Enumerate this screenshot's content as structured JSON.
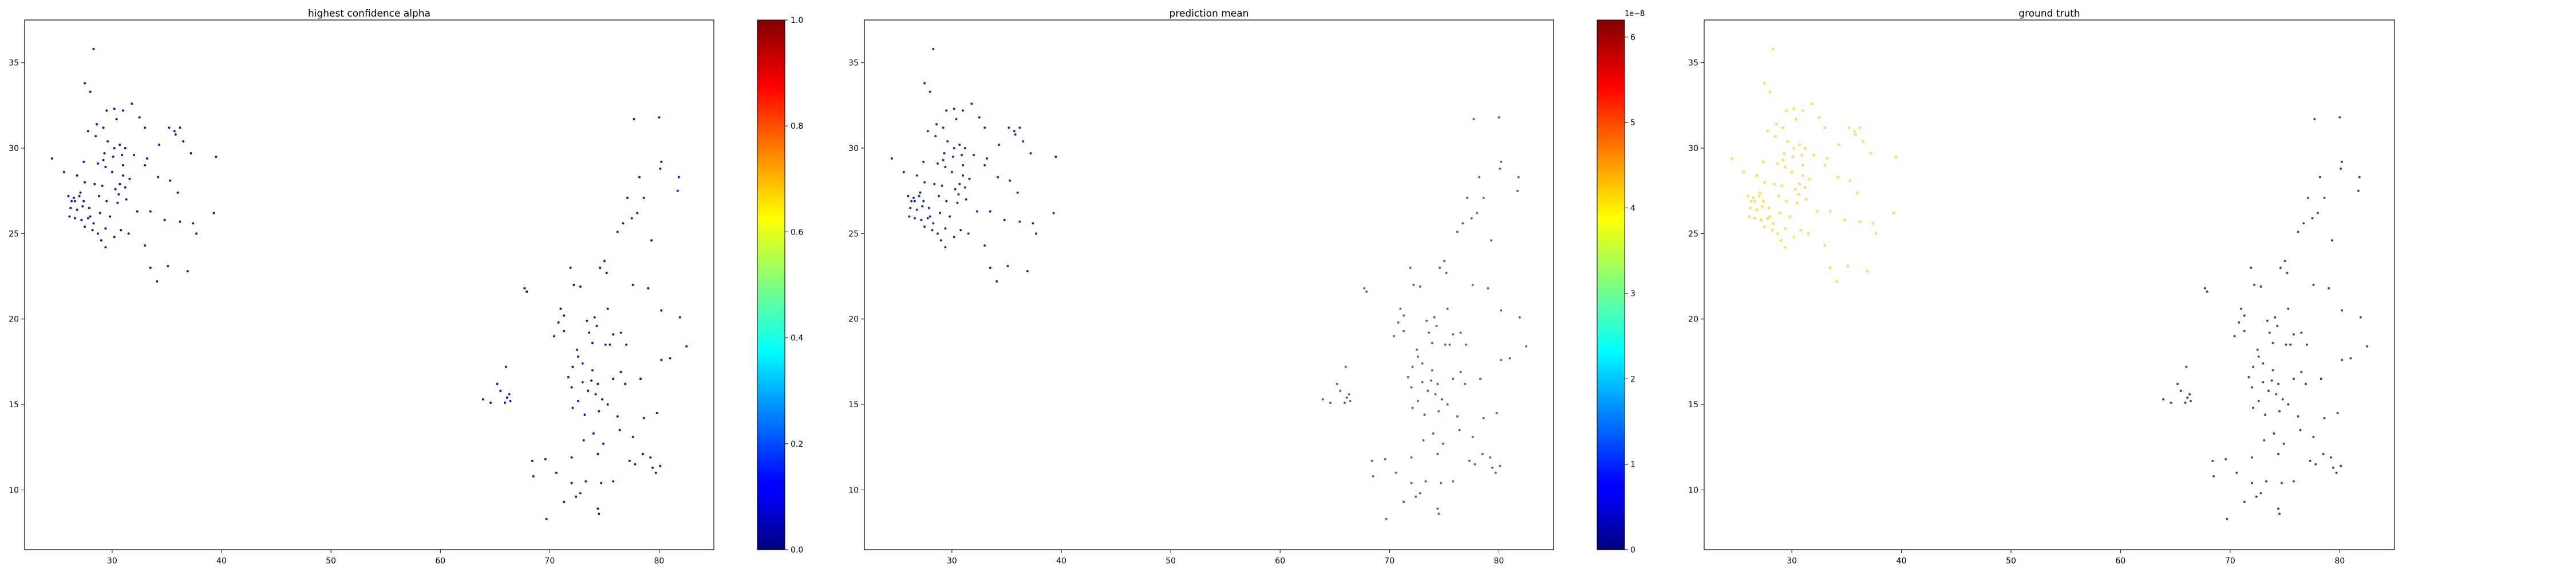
{
  "chart_data": [
    {
      "type": "scatter",
      "title": "highest confidence alpha",
      "xlim": [
        22,
        85
      ],
      "ylim": [
        6.5,
        37.5
      ],
      "xticks": [
        30,
        40,
        50,
        60,
        70,
        80
      ],
      "yticks": [
        10,
        15,
        20,
        25,
        30,
        35
      ],
      "point_color": "#1010d0",
      "colorbar": {
        "colormap": "jet",
        "range": [
          0.0,
          1.0
        ],
        "ticks": [
          0.0,
          0.2,
          0.4,
          0.6,
          0.8,
          1.0
        ],
        "tick_labels": [
          "0.0",
          "0.2",
          "0.4",
          "0.6",
          "0.8",
          "1.0"
        ],
        "offset_label": ""
      }
    },
    {
      "type": "scatter",
      "title": "prediction mean",
      "xlim": [
        22,
        85
      ],
      "ylim": [
        6.5,
        37.5
      ],
      "xticks": [
        30,
        40,
        50,
        60,
        70,
        80
      ],
      "yticks": [
        10,
        15,
        20,
        25,
        30,
        35
      ],
      "point_color_west": "#2020c0",
      "point_color_east": "#6060a0",
      "colorbar": {
        "colormap": "jet",
        "range": [
          0,
          6.2
        ],
        "ticks": [
          0,
          1,
          2,
          3,
          4,
          5,
          6
        ],
        "tick_labels": [
          "0",
          "1",
          "2",
          "3",
          "4",
          "5",
          "6"
        ],
        "offset_label": "1e−8"
      }
    },
    {
      "type": "scatter",
      "title": "ground truth",
      "xlim": [
        22,
        85
      ],
      "ylim": [
        6.5,
        37.5
      ],
      "xticks": [
        30,
        40,
        50,
        60,
        70,
        80
      ],
      "yticks": [
        10,
        15,
        20,
        25,
        30,
        35
      ],
      "point_color_west": "#ffe066",
      "point_color_east": "#444466"
    }
  ],
  "points": [
    [
      28.3,
      35.8
    ],
    [
      27.5,
      33.8
    ],
    [
      28,
      33.3
    ],
    [
      29.5,
      32.2
    ],
    [
      30.2,
      32.3
    ],
    [
      31,
      32.2
    ],
    [
      31.8,
      32.6
    ],
    [
      32.5,
      31.8
    ],
    [
      33,
      31.2
    ],
    [
      30.4,
      31.7
    ],
    [
      29.2,
      31.2
    ],
    [
      28.6,
      31.4
    ],
    [
      27.8,
      31.0
    ],
    [
      28.5,
      30.7
    ],
    [
      29.6,
      30.4
    ],
    [
      30.2,
      30.0
    ],
    [
      30.7,
      30.2
    ],
    [
      31.2,
      30.0
    ],
    [
      29.3,
      29.7
    ],
    [
      30.1,
      29.5
    ],
    [
      28.7,
      29.1
    ],
    [
      29.4,
      28.9
    ],
    [
      30.0,
      28.6
    ],
    [
      31.0,
      29.0
    ],
    [
      32.0,
      29.6
    ],
    [
      33.2,
      29.4
    ],
    [
      34.3,
      30.2
    ],
    [
      35.2,
      31.2
    ],
    [
      35.7,
      31.0
    ],
    [
      36.2,
      31.2
    ],
    [
      35.8,
      30.8
    ],
    [
      36.5,
      30.4
    ],
    [
      37.2,
      29.7
    ],
    [
      39.5,
      29.5
    ],
    [
      24.5,
      29.4
    ],
    [
      25.6,
      28.6
    ],
    [
      26.8,
      28.4
    ],
    [
      27.5,
      28.0
    ],
    [
      28.4,
      27.9
    ],
    [
      29.1,
      27.8
    ],
    [
      30.3,
      27.6
    ],
    [
      31.2,
      27.7
    ],
    [
      31.6,
      28.2
    ],
    [
      31.0,
      28.4
    ],
    [
      30.7,
      27.9
    ],
    [
      33.0,
      29.0
    ],
    [
      34.2,
      28.3
    ],
    [
      35.3,
      28.1
    ],
    [
      36.0,
      27.4
    ],
    [
      36.2,
      25.7
    ],
    [
      37.4,
      25.6
    ],
    [
      37.7,
      25.0
    ],
    [
      39.3,
      26.2
    ],
    [
      34.8,
      25.8
    ],
    [
      33.5,
      26.3
    ],
    [
      32.3,
      26.3
    ],
    [
      30.5,
      26.8
    ],
    [
      29.5,
      26.9
    ],
    [
      28.8,
      27.2
    ],
    [
      26.0,
      27.2
    ],
    [
      26.3,
      26.9
    ],
    [
      26.5,
      27.1
    ],
    [
      27.0,
      27.2
    ],
    [
      27.4,
      26.9
    ],
    [
      26.2,
      26.5
    ],
    [
      26.8,
      26.4
    ],
    [
      27.3,
      26.6
    ],
    [
      26.1,
      26.0
    ],
    [
      26.6,
      25.9
    ],
    [
      27.2,
      25.8
    ],
    [
      27.8,
      25.9
    ],
    [
      28.3,
      25.6
    ],
    [
      27.5,
      25.4
    ],
    [
      28.2,
      25.2
    ],
    [
      28.7,
      25.0
    ],
    [
      29.4,
      25.3
    ],
    [
      29.0,
      24.6
    ],
    [
      29.4,
      24.2
    ],
    [
      30.2,
      24.8
    ],
    [
      30.8,
      25.2
    ],
    [
      31.5,
      25.0
    ],
    [
      33.0,
      24.3
    ],
    [
      33.5,
      23.0
    ],
    [
      35.1,
      23.1
    ],
    [
      36.9,
      22.8
    ],
    [
      34.1,
      22.2
    ],
    [
      29.8,
      26.0
    ],
    [
      28.9,
      26.2
    ],
    [
      27.9,
      26.5
    ],
    [
      26.6,
      26.9
    ],
    [
      27.1,
      27.4
    ],
    [
      28.0,
      26.0
    ],
    [
      30.6,
      27.3
    ],
    [
      31.3,
      27.0
    ],
    [
      29.2,
      29.3
    ],
    [
      30.9,
      29.6
    ],
    [
      27.4,
      29.2
    ],
    [
      67.7,
      21.8
    ],
    [
      67.9,
      21.6
    ],
    [
      71.0,
      20.6
    ],
    [
      71.3,
      20.2
    ],
    [
      70.8,
      19.8
    ],
    [
      71.3,
      19.3
    ],
    [
      70.4,
      19.0
    ],
    [
      72.2,
      22.0
    ],
    [
      71.9,
      23.0
    ],
    [
      72.8,
      21.9
    ],
    [
      73.4,
      19.9
    ],
    [
      74.1,
      20.1
    ],
    [
      74.3,
      19.6
    ],
    [
      73.6,
      19.2
    ],
    [
      73.9,
      18.6
    ],
    [
      75.3,
      20.6
    ],
    [
      75.8,
      19.1
    ],
    [
      75.1,
      18.5
    ],
    [
      75.5,
      18.5
    ],
    [
      77.0,
      18.5
    ],
    [
      76.5,
      19.2
    ],
    [
      72.5,
      18.2
    ],
    [
      72.6,
      17.8
    ],
    [
      73.0,
      17.4
    ],
    [
      73.9,
      17.0
    ],
    [
      72.1,
      17.2
    ],
    [
      71.7,
      16.6
    ],
    [
      72.0,
      16.0
    ],
    [
      73.0,
      16.3
    ],
    [
      73.8,
      16.4
    ],
    [
      74.4,
      16.2
    ],
    [
      74.2,
      15.6
    ],
    [
      73.5,
      15.8
    ],
    [
      72.6,
      15.2
    ],
    [
      72.1,
      14.8
    ],
    [
      73.2,
      14.4
    ],
    [
      74.5,
      14.6
    ],
    [
      74.8,
      15.3
    ],
    [
      75.3,
      15.0
    ],
    [
      75.8,
      16.5
    ],
    [
      76.5,
      16.9
    ],
    [
      76.9,
      16.2
    ],
    [
      78.3,
      16.5
    ],
    [
      76.2,
      14.3
    ],
    [
      76.4,
      13.5
    ],
    [
      77.6,
      13.1
    ],
    [
      74.0,
      13.3
    ],
    [
      73.1,
      12.9
    ],
    [
      74.4,
      12.1
    ],
    [
      74.9,
      12.7
    ],
    [
      72.0,
      11.9
    ],
    [
      69.6,
      11.8
    ],
    [
      68.4,
      11.7
    ],
    [
      70.6,
      11.0
    ],
    [
      72.0,
      10.4
    ],
    [
      73.3,
      10.5
    ],
    [
      72.4,
      9.6
    ],
    [
      74.4,
      8.9
    ],
    [
      74.5,
      8.6
    ],
    [
      71.3,
      9.3
    ],
    [
      69.7,
      8.3
    ],
    [
      74.7,
      10.4
    ],
    [
      75.8,
      10.5
    ],
    [
      77.3,
      11.7
    ],
    [
      77.8,
      11.5
    ],
    [
      78.5,
      12.1
    ],
    [
      79.2,
      11.9
    ],
    [
      79.4,
      11.3
    ],
    [
      79.7,
      11.0
    ],
    [
      80.1,
      11.4
    ],
    [
      79.8,
      14.5
    ],
    [
      78.6,
      14.2
    ],
    [
      81.0,
      17.7
    ],
    [
      80.2,
      17.6
    ],
    [
      82.5,
      18.4
    ],
    [
      81.9,
      20.1
    ],
    [
      80.2,
      20.5
    ],
    [
      79.0,
      21.8
    ],
    [
      77.6,
      22.0
    ],
    [
      75.2,
      22.7
    ],
    [
      75.0,
      23.4
    ],
    [
      74.6,
      23.0
    ],
    [
      76.7,
      25.6
    ],
    [
      76.2,
      25.1
    ],
    [
      77.5,
      25.9
    ],
    [
      78.0,
      26.2
    ],
    [
      77.1,
      27.1
    ],
    [
      78.6,
      27.1
    ],
    [
      79.3,
      24.6
    ],
    [
      78.2,
      28.3
    ],
    [
      77.7,
      31.7
    ],
    [
      80.0,
      31.8
    ],
    [
      80.2,
      29.2
    ],
    [
      80.1,
      28.8
    ],
    [
      81.8,
      28.3
    ],
    [
      81.7,
      27.5
    ],
    [
      65.5,
      15.8
    ],
    [
      64.6,
      15.1
    ],
    [
      63.9,
      15.3
    ],
    [
      66.1,
      15.4
    ],
    [
      66.4,
      15.2
    ],
    [
      66.3,
      15.6
    ],
    [
      65.9,
      15.1
    ],
    [
      66.0,
      17.2
    ],
    [
      65.2,
      16.2
    ],
    [
      68.5,
      10.8
    ],
    [
      72.8,
      9.8
    ]
  ]
}
